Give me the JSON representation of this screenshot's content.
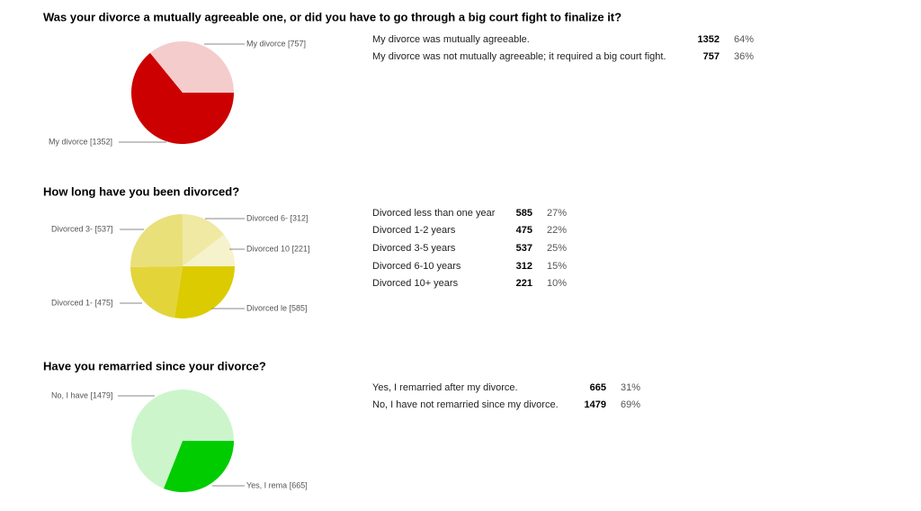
{
  "chart_data": [
    {
      "type": "pie",
      "title": "Was your divorce a mutually agreeable one, or did you have to go through a big court fight to finalize it?",
      "categories": [
        "My divorce was mutually agreeable.",
        "My divorce was not mutually agreeable; it required a big court fight."
      ],
      "values": [
        1352,
        757
      ],
      "percentages": [
        "64%",
        "36%"
      ],
      "slice_labels": [
        "My divorce [1352]",
        "My divorce  [757]"
      ],
      "colors": [
        "#cc0000",
        "#f4cccc"
      ]
    },
    {
      "type": "pie",
      "title": "How long have you been divorced?",
      "categories": [
        "Divorced less than one year",
        "Divorced 1-2 years",
        "Divorced 3-5 years",
        "Divorced 6-10 years",
        "Divorced 10+ years"
      ],
      "values": [
        585,
        475,
        537,
        312,
        221
      ],
      "percentages": [
        "27%",
        "22%",
        "25%",
        "15%",
        "10%"
      ],
      "slice_labels": [
        "Divorced le [585]",
        "Divorced 1- [475]",
        "Divorced 3- [537]",
        "Divorced 6- [312]",
        "Divorced 10 [221]"
      ],
      "colors": [
        "#dccb00",
        "#e3d43a",
        "#e9e07a",
        "#efe9a4",
        "#f6f2cc"
      ]
    },
    {
      "type": "pie",
      "title": "Have you remarried since your divorce?",
      "categories": [
        "Yes, I remarried after my divorce.",
        "No, I have not remarried since my divorce."
      ],
      "values": [
        665,
        1479
      ],
      "percentages": [
        "31%",
        "69%"
      ],
      "slice_labels": [
        "Yes, I rema [665]",
        "No, I have [1479]"
      ],
      "colors": [
        "#00cc00",
        "#ccf5cc"
      ]
    }
  ]
}
